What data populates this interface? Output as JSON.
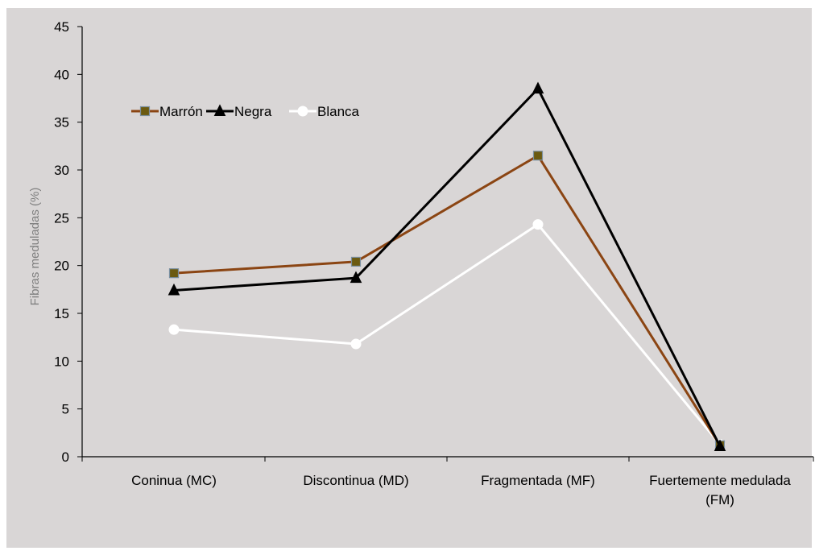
{
  "chart_data": {
    "type": "line",
    "title": "",
    "xlabel": "",
    "ylabel": "Fibras meduladas (%)",
    "ylim": [
      0,
      45
    ],
    "yticks": [
      0,
      5,
      10,
      15,
      20,
      25,
      30,
      35,
      40,
      45
    ],
    "categories": [
      [
        "Coninua (MC)"
      ],
      [
        "Discontinua (MD)"
      ],
      [
        "Fragmentada (MF)"
      ],
      [
        "Fuertemente medulada",
        "(FM)"
      ]
    ],
    "grid": false,
    "legend_position": "top-left",
    "series": [
      {
        "name": "Marrón",
        "values": [
          19.2,
          20.4,
          31.5,
          1.2
        ],
        "color": "#8B4513",
        "marker": "square",
        "marker_fill": "#6B5A10"
      },
      {
        "name": "Negra",
        "values": [
          17.4,
          18.7,
          38.5,
          1.1
        ],
        "color": "#000000",
        "marker": "triangle",
        "marker_fill": "#000000"
      },
      {
        "name": "Blanca",
        "values": [
          13.3,
          11.8,
          24.3,
          1.3
        ],
        "color": "#ffffff",
        "marker": "circle",
        "marker_fill": "#ffffff"
      }
    ],
    "colors": {
      "plot_background": "#d9d6d6",
      "axis": "#000000",
      "label": "#7f7f7f"
    }
  }
}
